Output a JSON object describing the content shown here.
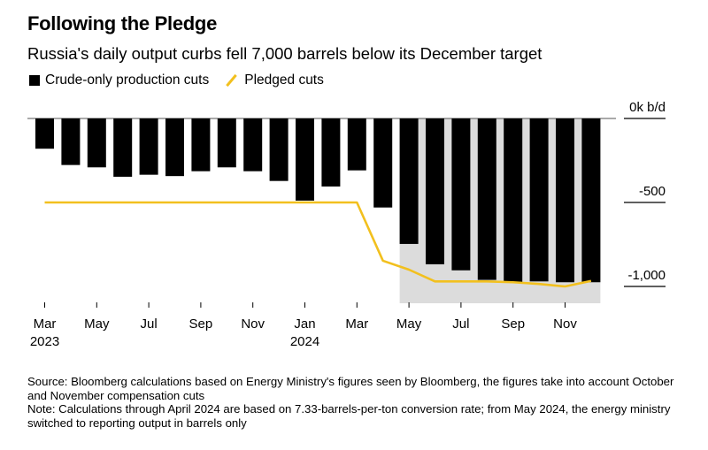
{
  "title": "Following the Pledge",
  "subtitle": "Russia's daily output curbs fell 7,000 barrels below its December target",
  "legend": {
    "bars": "Crude-only production cuts",
    "line": "Pledged cuts"
  },
  "footer": {
    "source": "Source: Bloomberg calculations based on Energy Ministry's figures seen by Bloomberg, the figures take into account October and November compensation cuts",
    "note": "Note: Calculations through April 2024 are based on 7.33-barrels-per-ton conversion rate; from May 2024, the energy ministry switched to reporting output in barrels only"
  },
  "colors": {
    "bars": "#000000",
    "line": "#f2c01e",
    "shade": "#dcdcdc"
  },
  "chart_data": {
    "type": "bar",
    "title": "Following the Pledge",
    "ylabel": "k b/d",
    "ylim": [
      -1100,
      0
    ],
    "yticks": [
      {
        "v": 0,
        "label": "0k b/d"
      },
      {
        "v": -500,
        "label": "-500"
      },
      {
        "v": -1000,
        "label": "-1,000"
      }
    ],
    "categories": [
      "Mar 2023",
      "Apr 2023",
      "May 2023",
      "Jun 2023",
      "Jul 2023",
      "Aug 2023",
      "Sep 2023",
      "Oct 2023",
      "Nov 2023",
      "Dec 2023",
      "Jan 2024",
      "Feb 2024",
      "Mar 2024",
      "Apr 2024",
      "May 2024",
      "Jun 2024",
      "Jul 2024",
      "Aug 2024",
      "Sep 2024",
      "Oct 2024",
      "Nov 2024",
      "Dec 2024"
    ],
    "xticks": [
      {
        "i": 0,
        "label": "Mar",
        "year": "2023"
      },
      {
        "i": 2,
        "label": "May"
      },
      {
        "i": 4,
        "label": "Jul"
      },
      {
        "i": 6,
        "label": "Sep"
      },
      {
        "i": 8,
        "label": "Nov"
      },
      {
        "i": 10,
        "label": "Jan",
        "year": "2024"
      },
      {
        "i": 12,
        "label": "Mar"
      },
      {
        "i": 14,
        "label": "May"
      },
      {
        "i": 16,
        "label": "Jul"
      },
      {
        "i": 18,
        "label": "Sep"
      },
      {
        "i": 20,
        "label": "Nov"
      }
    ],
    "series": [
      {
        "name": "Crude-only production cuts",
        "type": "bar",
        "values": [
          -180,
          -277,
          -291,
          -347,
          -335,
          -343,
          -314,
          -291,
          -314,
          -372,
          -489,
          -405,
          -309,
          -530,
          -747,
          -868,
          -904,
          -961,
          -975,
          -970,
          -975,
          -975
        ]
      },
      {
        "name": "Pledged cuts",
        "type": "line",
        "values": [
          -500,
          -500,
          -500,
          -500,
          -500,
          -500,
          -500,
          -500,
          -500,
          -500,
          -500,
          -500,
          -500,
          -847,
          -900,
          -970,
          -970,
          -970,
          -975,
          -985,
          -1000,
          -967
        ]
      }
    ],
    "shaded_from": "May 2024"
  }
}
